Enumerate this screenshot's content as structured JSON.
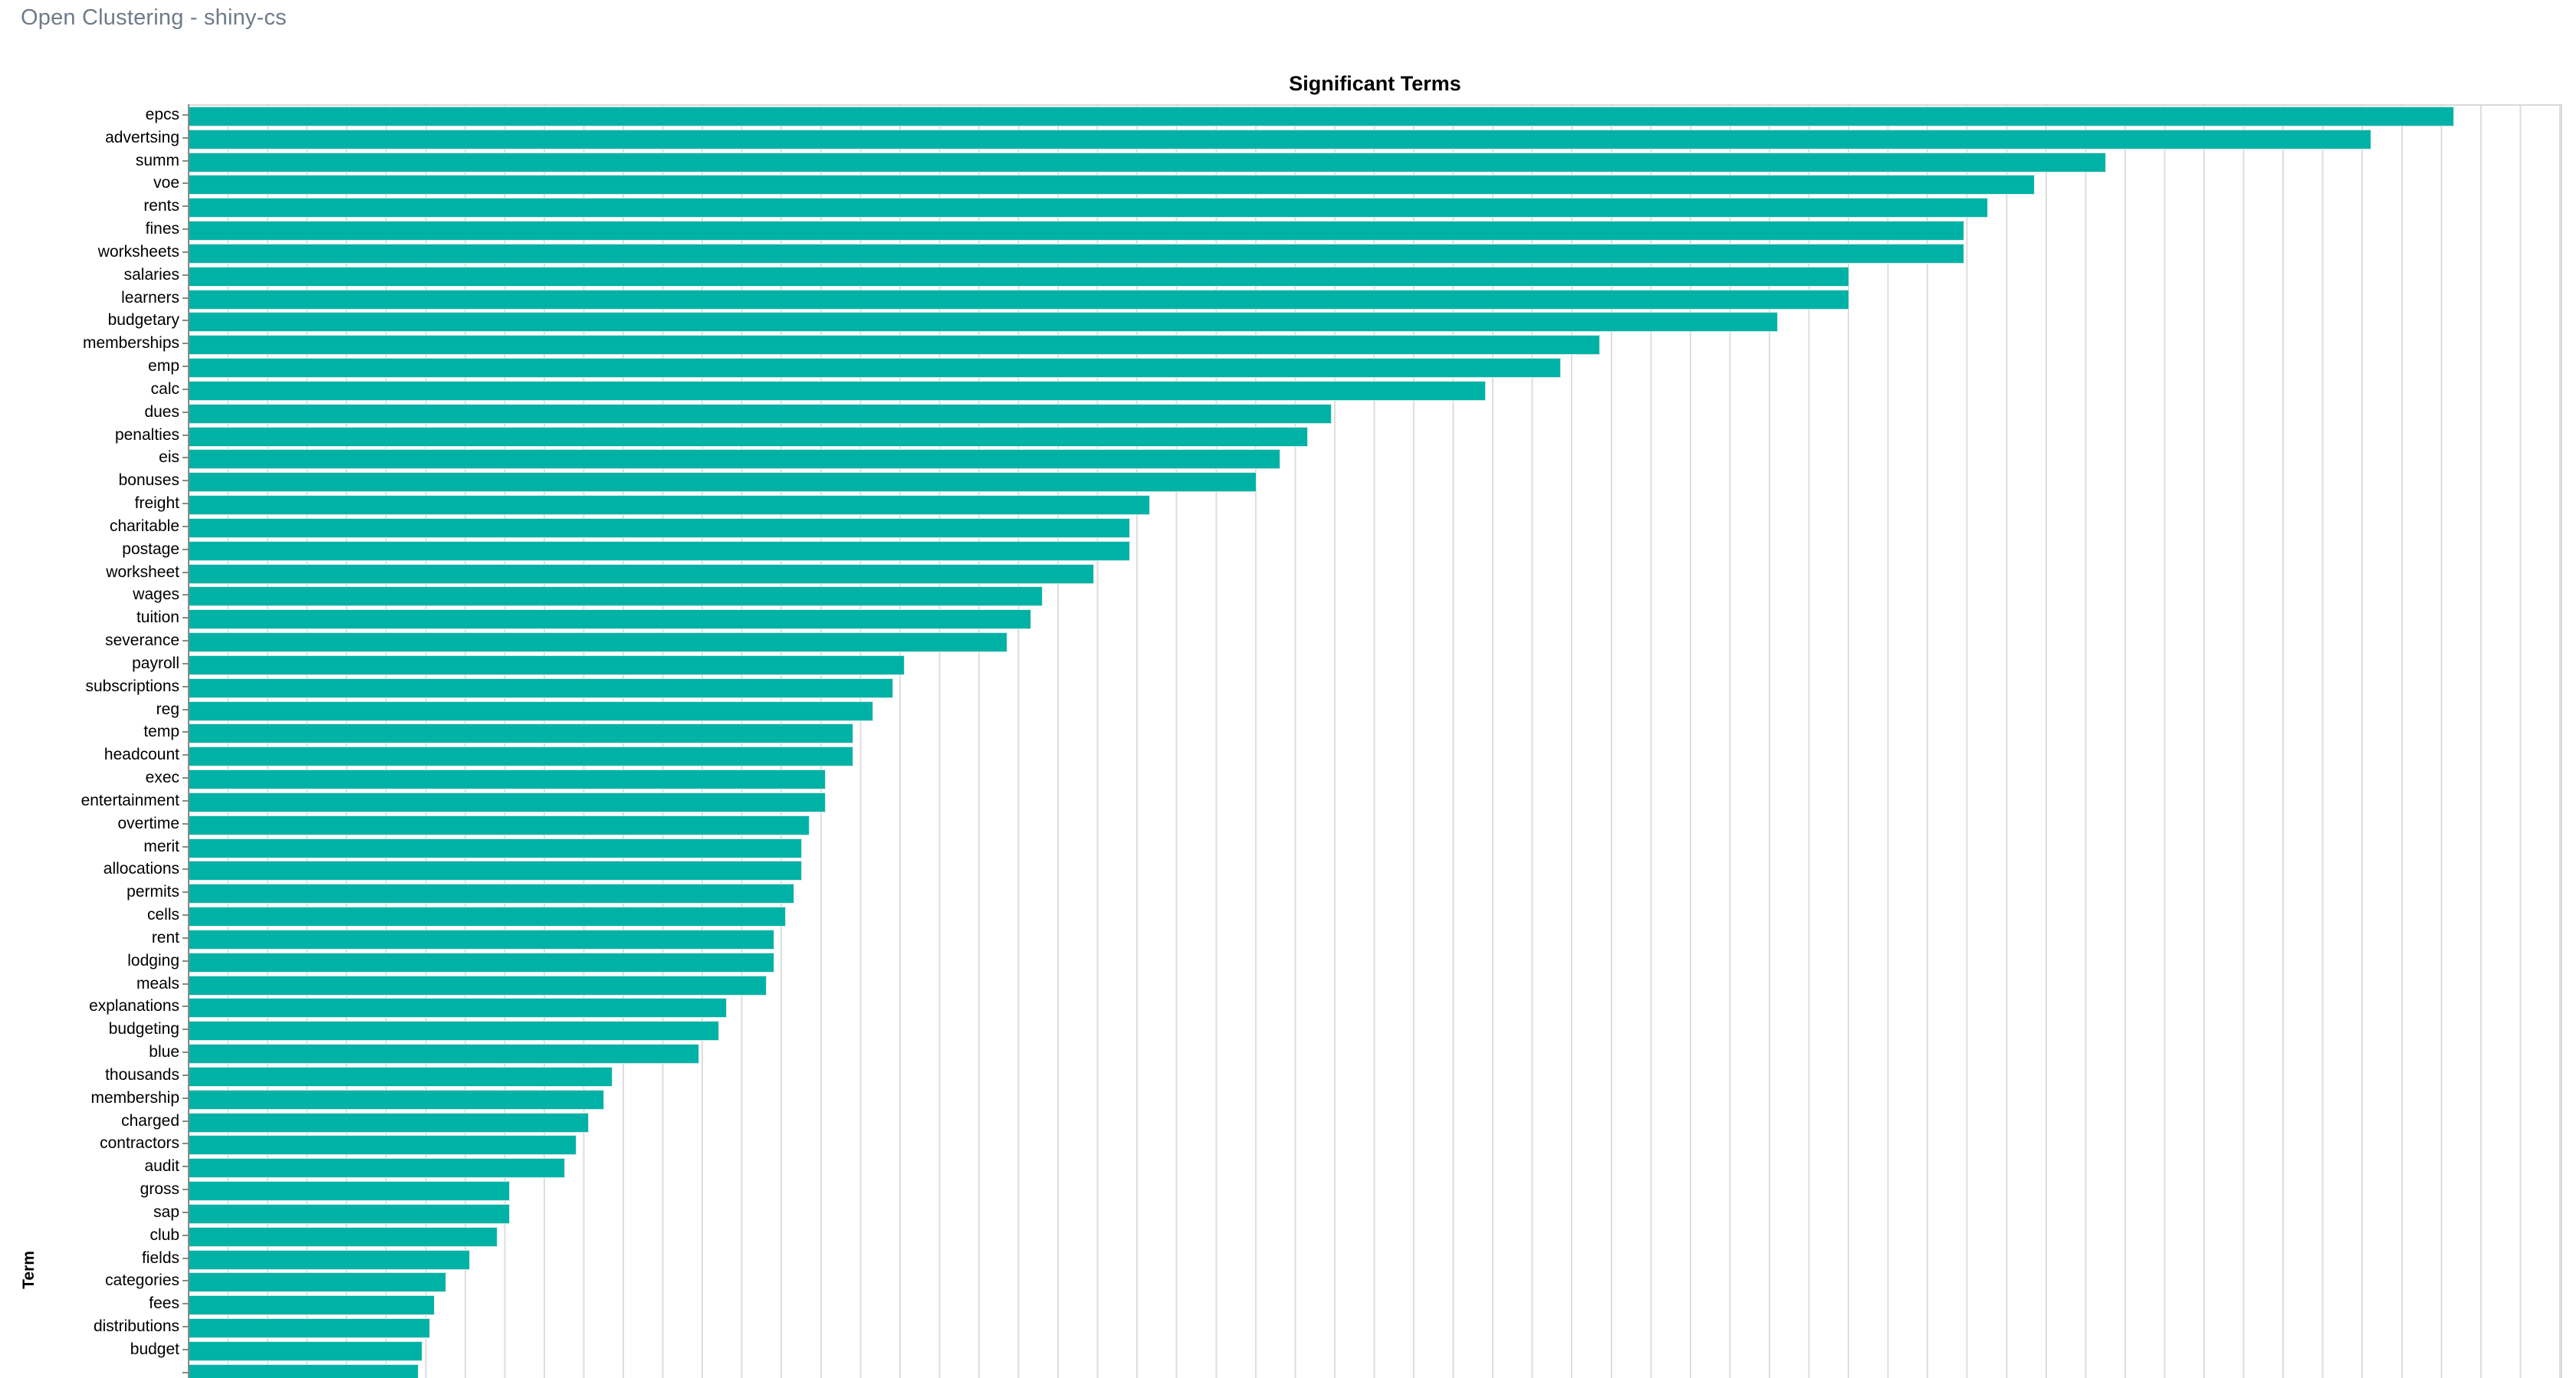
{
  "header": {
    "title": "Open Clustering - shiny-cs"
  },
  "chart": {
    "title": "Significant Terms",
    "ylabel": "Term"
  },
  "colors": {
    "bar_fill": "#00b2a5",
    "bar_outline": "#cdeae6",
    "axis_line": "#898989",
    "gridline": "#dedede",
    "plot_border": "#d9d9d9",
    "header_text": "#6e7b8a",
    "label_text": "#000000"
  },
  "chart_data": {
    "type": "bar",
    "orientation": "horizontal",
    "title": "Significant Terms",
    "xlabel": "",
    "ylabel": "Term",
    "grid": true,
    "gridline_interval": 1,
    "xlim": [
      0,
      60
    ],
    "axis_note": "x-axis tick labels are cut off below the viewport; values estimated in gridline units",
    "categories": [
      "epcs",
      "advertsing",
      "summ",
      "voe",
      "rents",
      "fines",
      "worksheets",
      "salaries",
      "learners",
      "budgetary",
      "memberships",
      "emp",
      "calc",
      "dues",
      "penalties",
      "eis",
      "bonuses",
      "freight",
      "charitable",
      "postage",
      "worksheet",
      "wages",
      "tuition",
      "severance",
      "payroll",
      "subscriptions",
      "reg",
      "temp",
      "headcount",
      "exec",
      "entertainment",
      "overtime",
      "merit",
      "allocations",
      "permits",
      "cells",
      "rent",
      "lodging",
      "meals",
      "explanations",
      "budgeting",
      "blue",
      "thousands",
      "membership",
      "charged",
      "contractors",
      "audit",
      "gross",
      "sap",
      "club",
      "fields",
      "categories",
      "fees",
      "distributions",
      "budget",
      ""
    ],
    "values": [
      57.3,
      55.2,
      48.5,
      46.7,
      45.5,
      44.9,
      44.9,
      42.0,
      42.0,
      40.2,
      35.7,
      34.7,
      32.8,
      28.9,
      28.3,
      27.6,
      27.0,
      24.3,
      23.8,
      23.8,
      22.9,
      21.6,
      21.3,
      20.7,
      18.1,
      17.8,
      17.3,
      16.8,
      16.8,
      16.1,
      16.1,
      15.7,
      15.5,
      15.5,
      15.3,
      15.1,
      14.8,
      14.8,
      14.6,
      13.6,
      13.4,
      12.9,
      10.7,
      10.5,
      10.1,
      9.8,
      9.5,
      8.1,
      8.1,
      7.8,
      7.1,
      6.5,
      6.2,
      6.1,
      5.9,
      5.8
    ]
  }
}
